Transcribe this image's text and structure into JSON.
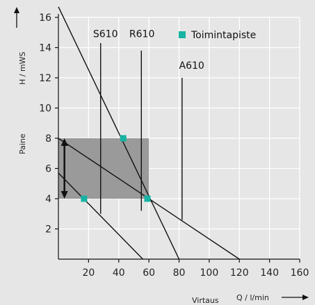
{
  "chart_data": {
    "type": "line",
    "title": "",
    "xlabel": "Q / l/min",
    "xlabel_left": "Virtaus",
    "ylabel": "H / mWS",
    "ylabel_left": "Paine",
    "xlim": [
      0,
      160
    ],
    "ylim": [
      0,
      16
    ],
    "x_ticks": [
      "20",
      "40",
      "60",
      "80",
      "100",
      "120",
      "140",
      "160"
    ],
    "y_ticks": [
      "2",
      "4",
      "6",
      "8",
      "10",
      "12",
      "14",
      "16"
    ],
    "grid": true,
    "legend": {
      "label": "Toimintapiste",
      "position": "top-right",
      "color": "#17b3a3"
    },
    "colors": {
      "background": "#e6e6e6",
      "band": "#9a9a9a",
      "lines": "#111111",
      "marker": "#17b3a3",
      "grid": "#ffffff"
    },
    "shaded_band": {
      "x": [
        0,
        60
      ],
      "y": [
        4,
        8
      ]
    },
    "pressure_range_arrow": {
      "x": 4,
      "y": [
        4,
        8
      ]
    },
    "system_curves": [
      {
        "x": [
          0,
          80
        ],
        "y": [
          16.7,
          0
        ]
      },
      {
        "x": [
          0,
          120
        ],
        "y": [
          8.0,
          0
        ]
      },
      {
        "x": [
          0,
          56
        ],
        "y": [
          5.7,
          0
        ]
      }
    ],
    "valve_lines": [
      {
        "label": "S610",
        "x": 28,
        "y": [
          3.0,
          14.3
        ],
        "label_pos": [
          23,
          14.7
        ]
      },
      {
        "label": "R610",
        "x": 55,
        "y": [
          3.2,
          13.8
        ],
        "label_pos": [
          47,
          14.7
        ]
      },
      {
        "label": "A610",
        "x": 82,
        "y": [
          2.6,
          12.0
        ],
        "label_pos": [
          80,
          12.6
        ]
      }
    ],
    "operating_points": [
      {
        "x": 17,
        "y": 4.0
      },
      {
        "x": 43,
        "y": 8.0
      },
      {
        "x": 59,
        "y": 4.0
      }
    ]
  }
}
